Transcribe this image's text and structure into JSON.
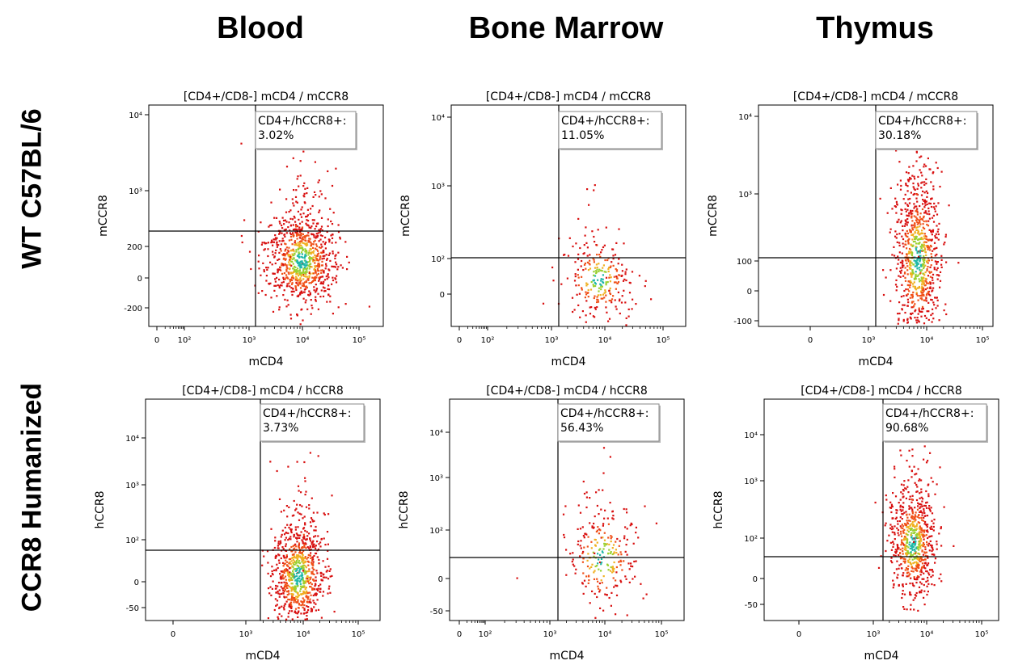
{
  "column_headers": [
    "Blood",
    "Bone Marrow",
    "Thymus"
  ],
  "row_labels": [
    "WT C57BL/6",
    "CCR8 Humanized"
  ],
  "chart_data": [
    {
      "type": "scatter",
      "title": "[CD4+/CD8-] mCD4 / mCCR8",
      "xlabel": "mCD4",
      "ylabel": "mCCR8",
      "x_ticks": [
        "0",
        "10²",
        "10³",
        "10⁴",
        "10⁵"
      ],
      "y_ticks": [
        "10⁴",
        "10³",
        "200",
        "0",
        "-200"
      ],
      "gate_label": "CD4+/hCCR8+:",
      "gate_value": "3.02%",
      "events": 900
    },
    {
      "type": "scatter",
      "title": "[CD4+/CD8-] mCD4 / mCCR8",
      "xlabel": "mCD4",
      "ylabel": "mCCR8",
      "x_ticks": [
        "0",
        "10²",
        "10³",
        "10⁴",
        "10⁵"
      ],
      "y_ticks": [
        "10⁴",
        "10³",
        "10²",
        "0"
      ],
      "gate_label": "CD4+/hCCR8+:",
      "gate_value": "11.05%",
      "events": 260
    },
    {
      "type": "scatter",
      "title": "[CD4+/CD8-] mCD4 / mCCR8",
      "xlabel": "mCD4",
      "ylabel": "mCCR8",
      "x_ticks": [
        "0",
        "10³",
        "10⁴",
        "10⁵"
      ],
      "y_ticks": [
        "10⁴",
        "10³",
        "100",
        "0",
        "-100"
      ],
      "gate_label": "CD4+/hCCR8+:",
      "gate_value": "30.18%",
      "events": 850
    },
    {
      "type": "scatter",
      "title": "[CD4+/CD8-] mCD4 / hCCR8",
      "xlabel": "mCD4",
      "ylabel": "hCCR8",
      "x_ticks": [
        "0",
        "10³",
        "10⁴",
        "10⁵"
      ],
      "y_ticks": [
        "10⁴",
        "10³",
        "10²",
        "0",
        "-50"
      ],
      "gate_label": "CD4+/hCCR8+:",
      "gate_value": "3.73%",
      "events": 850
    },
    {
      "type": "scatter",
      "title": "[CD4+/CD8-] mCD4 / hCCR8",
      "xlabel": "mCD4",
      "ylabel": "hCCR8",
      "x_ticks": [
        "0",
        "10²",
        "10³",
        "10⁴",
        "10⁵"
      ],
      "y_ticks": [
        "10⁴",
        "10³",
        "10²",
        "0",
        "-50"
      ],
      "gate_label": "CD4+/hCCR8+:",
      "gate_value": "56.43%",
      "events": 260
    },
    {
      "type": "scatter",
      "title": "[CD4+/CD8-] mCD4 / hCCR8",
      "xlabel": "mCD4",
      "ylabel": "hCCR8",
      "x_ticks": [
        "0",
        "10³",
        "10⁴",
        "10⁵"
      ],
      "y_ticks": [
        "10⁴",
        "10³",
        "10²",
        "0",
        "-50"
      ],
      "gate_label": "CD4+/hCCR8+:",
      "gate_value": "90.68%",
      "events": 700
    }
  ],
  "colors": {
    "density_low": "#e02010",
    "density_mid": "#f0c020",
    "density_high": "#20c0a0",
    "gate_line": "#000000"
  }
}
